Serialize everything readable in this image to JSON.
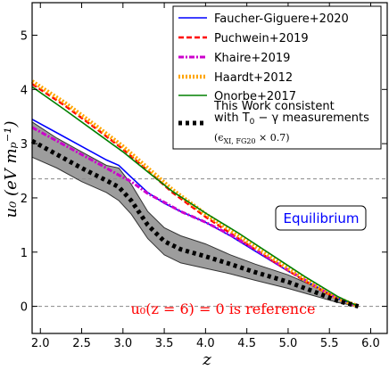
{
  "chart_data": {
    "type": "line",
    "xlabel": "z",
    "ylabel": "u₀ (eV mₚ⁻¹)",
    "xlim": [
      1.9,
      6.2
    ],
    "ylim": [
      -0.5,
      5.6
    ],
    "xticks": [
      "2.0",
      "2.5",
      "3.0",
      "3.5",
      "4.0",
      "4.5",
      "5.0",
      "5.5",
      "6.0"
    ],
    "xtick_values": [
      2.0,
      2.5,
      3.0,
      3.5,
      4.0,
      4.5,
      5.0,
      5.5,
      6.0
    ],
    "yticks": [
      "0",
      "1",
      "2",
      "3",
      "4",
      "5"
    ],
    "ytick_values": [
      0,
      1,
      2,
      3,
      4,
      5
    ],
    "reference_lines": [
      0.0,
      2.35
    ],
    "legend_position": "top-right",
    "annotations": {
      "reference": "u₀(z = 6) = 0 is reference",
      "equilibrium": "Equilibrium"
    },
    "band": {
      "x": [
        1.9,
        2.2,
        2.5,
        2.8,
        2.95,
        3.1,
        3.3,
        3.5,
        3.7,
        4.0,
        4.3,
        4.6,
        5.0,
        5.3,
        5.6,
        5.85
      ],
      "lower": [
        2.75,
        2.55,
        2.3,
        2.1,
        1.95,
        1.7,
        1.25,
        0.95,
        0.8,
        0.7,
        0.6,
        0.48,
        0.33,
        0.2,
        0.07,
        0.0
      ],
      "upper": [
        3.4,
        3.1,
        2.85,
        2.6,
        2.55,
        2.25,
        1.75,
        1.45,
        1.3,
        1.15,
        0.95,
        0.78,
        0.58,
        0.38,
        0.15,
        0.0
      ]
    },
    "series": [
      {
        "name": "Faucher-Giguere+2020",
        "color": "#0000ff",
        "style": "solid",
        "x": [
          1.9,
          2.2,
          2.5,
          2.8,
          2.95,
          3.1,
          3.3,
          3.5,
          3.7,
          4.0,
          4.3,
          4.6,
          5.0,
          5.3,
          5.6,
          5.85
        ],
        "y": [
          3.45,
          3.2,
          2.95,
          2.7,
          2.6,
          2.38,
          2.1,
          1.9,
          1.75,
          1.55,
          1.3,
          1.02,
          0.65,
          0.4,
          0.15,
          0.0
        ]
      },
      {
        "name": "Puchwein+2019",
        "color": "#ff0000",
        "style": "dashed",
        "x": [
          1.9,
          2.3,
          2.7,
          3.0,
          3.3,
          3.6,
          4.0,
          4.4,
          4.8,
          5.2,
          5.6,
          5.85
        ],
        "y": [
          4.1,
          3.7,
          3.25,
          2.9,
          2.5,
          2.1,
          1.65,
          1.25,
          0.85,
          0.47,
          0.13,
          0.0
        ]
      },
      {
        "name": "Khaire+2019",
        "color": "#cc00cc",
        "style": "dashdot",
        "x": [
          1.9,
          2.2,
          2.5,
          2.8,
          2.95,
          3.1,
          3.3,
          3.5,
          3.7,
          4.0,
          4.3,
          4.6,
          5.0,
          5.3,
          5.6,
          5.85
        ],
        "y": [
          3.3,
          3.05,
          2.8,
          2.55,
          2.42,
          2.3,
          2.08,
          1.92,
          1.75,
          1.55,
          1.32,
          1.05,
          0.67,
          0.4,
          0.14,
          0.0
        ]
      },
      {
        "name": "Haardt+2012",
        "color": "#ffa500",
        "style": "dotted",
        "x": [
          1.9,
          2.3,
          2.7,
          3.0,
          3.3,
          3.6,
          4.0,
          4.4,
          4.8,
          5.2,
          5.6,
          5.85
        ],
        "y": [
          4.15,
          3.75,
          3.3,
          2.95,
          2.55,
          2.15,
          1.7,
          1.3,
          0.9,
          0.5,
          0.15,
          0.0
        ]
      },
      {
        "name": "Onorbe+2017",
        "color": "#008000",
        "style": "solid",
        "x": [
          1.9,
          2.3,
          2.7,
          3.0,
          3.3,
          3.6,
          4.0,
          4.4,
          4.8,
          5.2,
          5.6,
          5.85
        ],
        "y": [
          4.05,
          3.62,
          3.18,
          2.85,
          2.48,
          2.12,
          1.72,
          1.35,
          0.95,
          0.55,
          0.18,
          0.0
        ]
      },
      {
        "name": "This Work consistent with T₀ − γ measurements",
        "subtitle": "(εXI, FG20 × 0.7)",
        "color": "#000000",
        "style": "thickdotted",
        "x": [
          1.9,
          2.2,
          2.5,
          2.8,
          2.95,
          3.1,
          3.3,
          3.5,
          3.7,
          4.0,
          4.3,
          4.6,
          5.0,
          5.3,
          5.6,
          5.85
        ],
        "y": [
          3.05,
          2.8,
          2.55,
          2.32,
          2.2,
          1.95,
          1.5,
          1.2,
          1.05,
          0.92,
          0.78,
          0.63,
          0.45,
          0.28,
          0.1,
          0.0
        ]
      }
    ]
  }
}
